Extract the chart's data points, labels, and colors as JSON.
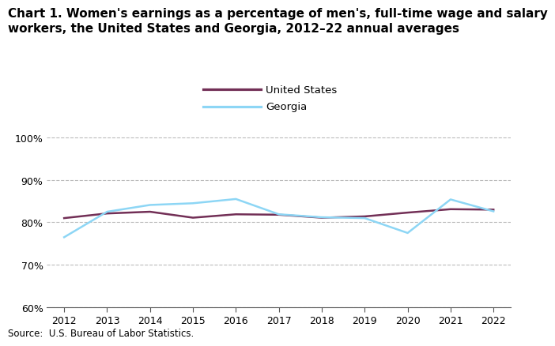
{
  "title_line1": "Chart 1. Women's earnings as a percentage of men's, full-time wage and salary",
  "title_line2": "workers, the United States and Georgia, 2012–22 annual averages",
  "years": [
    2012,
    2013,
    2014,
    2015,
    2016,
    2017,
    2018,
    2019,
    2020,
    2021,
    2022
  ],
  "us_values": [
    81.0,
    82.1,
    82.5,
    81.1,
    81.9,
    81.8,
    81.1,
    81.4,
    82.3,
    83.1,
    83.0
  ],
  "ga_values": [
    76.5,
    82.5,
    84.1,
    84.5,
    85.5,
    81.9,
    81.2,
    81.0,
    77.5,
    85.4,
    82.6
  ],
  "us_color": "#722F56",
  "ga_color": "#8DD6F5",
  "ylim": [
    60,
    102
  ],
  "yticks": [
    60,
    70,
    80,
    90,
    100
  ],
  "ytick_labels": [
    "60%",
    "70%",
    "80%",
    "90%",
    "100%"
  ],
  "xlim": [
    2011.6,
    2022.4
  ],
  "source_text": "Source:  U.S. Bureau of Labor Statistics.",
  "legend_us": "United States",
  "legend_ga": "Georgia",
  "grid_color": "#bbbbbb",
  "background_color": "#ffffff",
  "line_width": 1.8,
  "title_fontsize": 11.0,
  "tick_fontsize": 9.0,
  "legend_fontsize": 9.5,
  "source_fontsize": 8.5
}
